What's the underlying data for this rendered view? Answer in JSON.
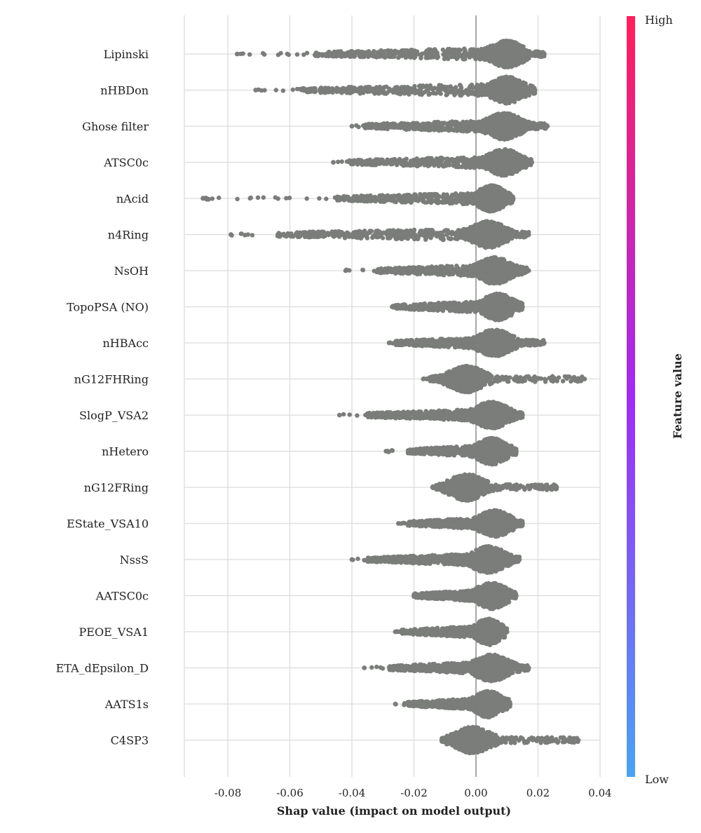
{
  "chart_data": {
    "type": "scatter",
    "subtype": "shap-beeswarm",
    "title": "",
    "xlabel": "Shap value (impact on model output)",
    "xlim": [
      -0.095,
      0.04
    ],
    "xticks": [
      -0.08,
      -0.06,
      -0.04,
      -0.02,
      0.0,
      0.02,
      0.04
    ],
    "xtick_labels": [
      "-0.08",
      "-0.06",
      "-0.04",
      "-0.02",
      "0.00",
      "0.02",
      "0.04"
    ],
    "grid": true,
    "point_color": "#7a7d7a",
    "colorbar": {
      "title": "Feature value",
      "high_label": "High",
      "low_label": "Low",
      "high_color": "#ff1f5a",
      "mid_color": "#a02cf0",
      "low_color": "#4aa3f2"
    },
    "features": [
      {
        "name": "Lipinski",
        "min": -0.077,
        "max": 0.022,
        "peak": 0.01,
        "tail_start": -0.052
      },
      {
        "name": "nHBDon",
        "min": -0.071,
        "max": 0.019,
        "peak": 0.01,
        "tail_start": -0.058
      },
      {
        "name": "Ghose filter",
        "min": -0.04,
        "max": 0.023,
        "peak": 0.009,
        "tail_start": -0.036
      },
      {
        "name": "ATSC0c",
        "min": -0.046,
        "max": 0.018,
        "peak": 0.009,
        "tail_start": -0.041
      },
      {
        "name": "nAcid",
        "min": -0.088,
        "max": 0.012,
        "peak": 0.005,
        "tail_start": -0.045
      },
      {
        "name": "n4Ring",
        "min": -0.079,
        "max": 0.017,
        "peak": 0.004,
        "tail_start": -0.064
      },
      {
        "name": "NsOH",
        "min": -0.042,
        "max": 0.017,
        "peak": 0.006,
        "tail_start": -0.032
      },
      {
        "name": "TopoPSA (NO)",
        "min": -0.027,
        "max": 0.015,
        "peak": 0.007,
        "tail_start": -0.026
      },
      {
        "name": "nHBAcc",
        "min": -0.028,
        "max": 0.022,
        "peak": 0.006,
        "tail_start": -0.026
      },
      {
        "name": "nG12FHRing",
        "min": -0.017,
        "max": 0.035,
        "peak": -0.003,
        "tail_start": -0.015
      },
      {
        "name": "SlogP_VSA2",
        "min": -0.044,
        "max": 0.015,
        "peak": 0.005,
        "tail_start": -0.035
      },
      {
        "name": "nHetero",
        "min": -0.029,
        "max": 0.013,
        "peak": 0.005,
        "tail_start": -0.022
      },
      {
        "name": "nG12FRing",
        "min": -0.014,
        "max": 0.026,
        "peak": -0.003,
        "tail_start": -0.013
      },
      {
        "name": "EState_VSA10",
        "min": -0.025,
        "max": 0.015,
        "peak": 0.006,
        "tail_start": -0.022
      },
      {
        "name": "NssS",
        "min": -0.04,
        "max": 0.014,
        "peak": 0.004,
        "tail_start": -0.035
      },
      {
        "name": "AATSC0c",
        "min": -0.02,
        "max": 0.013,
        "peak": 0.005,
        "tail_start": -0.02
      },
      {
        "name": "PEOE_VSA1",
        "min": -0.026,
        "max": 0.01,
        "peak": 0.004,
        "tail_start": -0.024
      },
      {
        "name": "ETA_dEpsilon_D",
        "min": -0.036,
        "max": 0.017,
        "peak": 0.005,
        "tail_start": -0.028
      },
      {
        "name": "AATS1s",
        "min": -0.026,
        "max": 0.011,
        "peak": 0.004,
        "tail_start": -0.022
      },
      {
        "name": "C4SP3",
        "min": -0.011,
        "max": 0.033,
        "peak": -0.001,
        "tail_start": -0.011
      }
    ]
  }
}
